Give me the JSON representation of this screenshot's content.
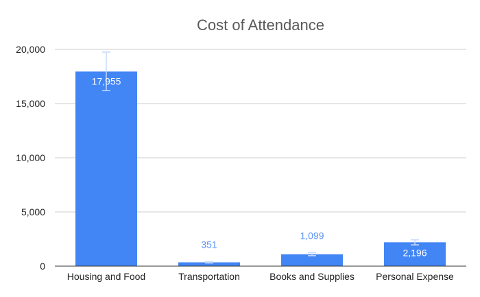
{
  "chart_data": {
    "type": "bar",
    "title": "Cost of Attendance",
    "xlabel": "",
    "ylabel": "",
    "categories": [
      "Housing and Food",
      "Transportation",
      "Books and Supplies",
      "Personal Expense"
    ],
    "values": [
      17955,
      351,
      1099,
      2196
    ],
    "value_labels": [
      "17,955",
      "351",
      "1,099",
      "2,196"
    ],
    "error_bars": [
      {
        "low": 16200,
        "high": 19750
      },
      {
        "low": 290,
        "high": 410
      },
      {
        "low": 960,
        "high": 1240
      },
      {
        "low": 1960,
        "high": 2430
      }
    ],
    "ylim": [
      0,
      20000
    ],
    "yticks": [
      0,
      5000,
      10000,
      15000,
      20000
    ],
    "ytick_labels": [
      "0",
      "5,000",
      "10,000",
      "15,000",
      "20,000"
    ],
    "grid": true,
    "legend": "none",
    "colors": {
      "bar": "#4285F4",
      "error_bar": "#C6D9FB",
      "label_inside": "#FFFFFF",
      "label_outside": "#5B95F6",
      "grid": "#CCCCCC",
      "axis": "#333333",
      "title": "#595959",
      "tick": "#222222"
    }
  }
}
